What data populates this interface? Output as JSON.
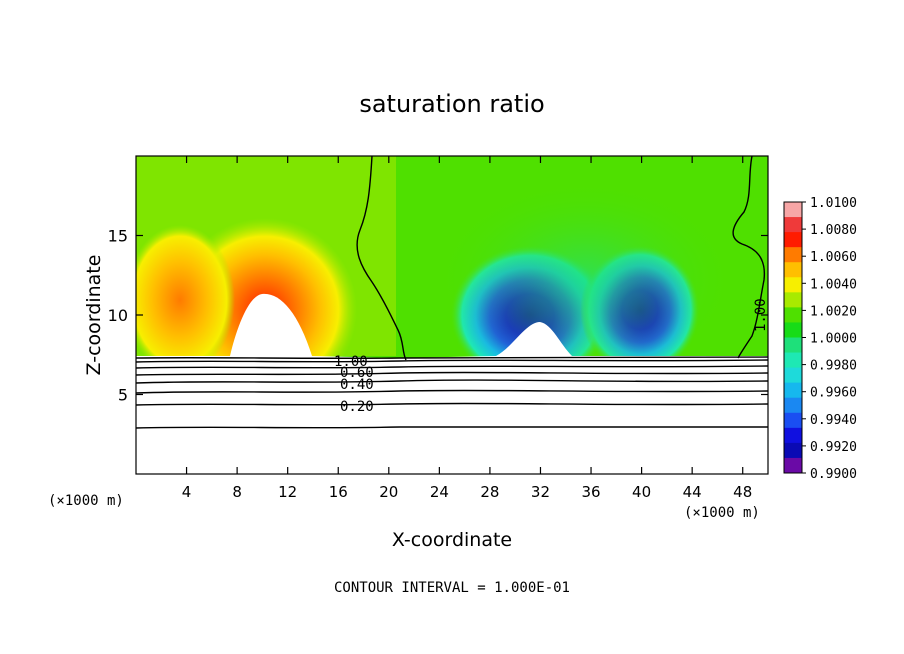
{
  "chart_data": {
    "type": "heatmap",
    "title": "saturation ratio",
    "xlabel": "X-coordinate",
    "ylabel": "Z-coordinate",
    "x_unit": "(×1000 m)",
    "x_unit_right": "(×1000 m)",
    "footer": "CONTOUR INTERVAL = 1.000E-01",
    "xlim": [
      0,
      50
    ],
    "ylim": [
      0,
      20
    ],
    "x_ticks": [
      4,
      8,
      12,
      16,
      20,
      24,
      28,
      32,
      36,
      40,
      44,
      48
    ],
    "y_ticks": [
      5,
      10,
      15
    ],
    "colorbar": {
      "min": 0.99,
      "max": 1.01,
      "labels": [
        "1.0100",
        "1.0080",
        "1.0060",
        "1.0040",
        "1.0020",
        "1.0000",
        "0.9980",
        "0.9960",
        "0.9940",
        "0.9920",
        "0.9900"
      ],
      "colors": [
        "#f7a6a6",
        "#ef3a3a",
        "#ff1c00",
        "#ff7b00",
        "#ffbf00",
        "#f7ef00",
        "#a8ea00",
        "#4fe000",
        "#17dc17",
        "#1ee07a",
        "#1ee8b4",
        "#1edada",
        "#16b8ee",
        "#1a88f2",
        "#1a4ef2",
        "#1010e0",
        "#0a0ab4",
        "#6a0aa6"
      ]
    },
    "contour_labels": [
      {
        "text": "0.20",
        "x": 18.5,
        "z": 4.3
      },
      {
        "text": "0.40",
        "x": 18.2,
        "z": 5.6
      },
      {
        "text": "0.60",
        "x": 17.8,
        "z": 6.5
      },
      {
        "text": "1.00",
        "x": 17.5,
        "z": 7.1
      },
      {
        "text": "1.00",
        "x": 48.4,
        "z": 9.6
      }
    ]
  }
}
